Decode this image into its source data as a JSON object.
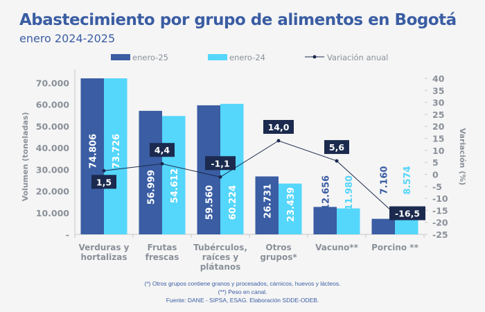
{
  "chart_data": {
    "type": "bar",
    "title": "Abastecimiento por grupo de alimentos en Bogotá",
    "subtitle": "enero 2024-2025",
    "categories": [
      [
        "Verduras y",
        "hortalizas"
      ],
      [
        "Frutas",
        "frescas"
      ],
      [
        "Tubérculos,",
        "raíces y",
        "plátanos"
      ],
      [
        "Otros",
        "grupos*"
      ],
      [
        "Vacuno**"
      ],
      [
        "Porcino **"
      ]
    ],
    "series": [
      {
        "name": "enero-25",
        "type": "bar",
        "color": "#3a5da3",
        "values": [
          74806,
          56999,
          59560,
          26731,
          12656,
          7160
        ],
        "labels": [
          "74.806",
          "56.999",
          "59.560",
          "26.731",
          "12.656",
          "7.160"
        ]
      },
      {
        "name": "enero-24",
        "type": "bar",
        "color": "#55d6fb",
        "values": [
          73726,
          54612,
          60224,
          23439,
          11980,
          8574
        ],
        "labels": [
          "73.726",
          "54.612",
          "60.224",
          "23.439",
          "11.980",
          "8.574"
        ]
      },
      {
        "name": "Variación anual",
        "type": "line",
        "axis": "right",
        "color": "#1b2a4e",
        "values": [
          1.5,
          4.4,
          -1.1,
          14.0,
          5.6,
          -16.5
        ],
        "labels": [
          "1,5",
          "4,4",
          "-1,1",
          "14,0",
          "5,6",
          "-16,5"
        ]
      }
    ],
    "ylabel": "Volumen (toneladas)",
    "ylim": [
      0,
      72000
    ],
    "yticks": [
      {
        "v": 0,
        "t": "-"
      },
      {
        "v": 10000,
        "t": "10.000"
      },
      {
        "v": 20000,
        "t": "20.000"
      },
      {
        "v": 30000,
        "t": "30.000"
      },
      {
        "v": 40000,
        "t": "40.000"
      },
      {
        "v": 50000,
        "t": "50.000"
      },
      {
        "v": 60000,
        "t": "60.000"
      },
      {
        "v": 70000,
        "t": "70.000"
      }
    ],
    "y2label": "Variación (%)",
    "y2lim": [
      -25,
      40
    ],
    "y2ticks": [
      "40",
      "35",
      "30",
      "25",
      "20",
      "15",
      "10",
      "5",
      "0",
      "-5",
      "-10",
      "-15",
      "-20",
      "-25"
    ],
    "legend": "top",
    "grid": false
  },
  "notes": [
    "(*) Otros grupos contiene granos y procesados, cárnicos, huevos y lácteos.",
    "(**) Peso en canal.",
    "Fuente: DANE - SIPSA, ESAG. Elaboración SDDE-ODEB."
  ]
}
